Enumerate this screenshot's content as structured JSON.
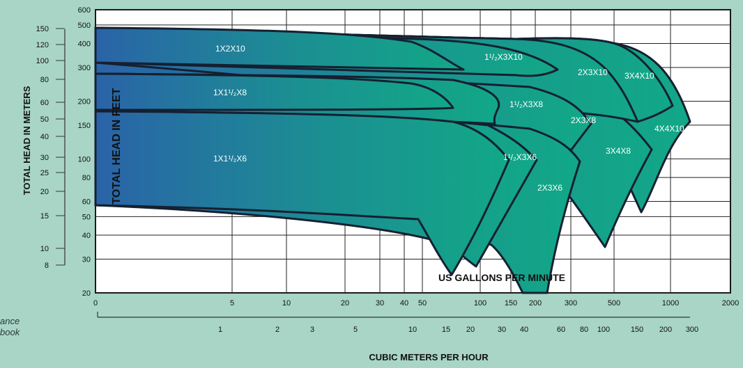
{
  "chart_data": {
    "type": "area",
    "axes": {
      "top_x": {
        "label": "US GALLONS PER MINUTE",
        "scale": "log",
        "ticks": [
          "0",
          "5",
          "10",
          "20",
          "30",
          "40",
          "50",
          "100",
          "150",
          "200",
          "300",
          "500",
          "1000",
          "2000"
        ]
      },
      "bottom_x": {
        "label": "CUBIC METERS PER HOUR",
        "scale": "log",
        "ticks": [
          "1",
          "2",
          "3",
          "5",
          "10",
          "15",
          "20",
          "30",
          "40",
          "60",
          "80",
          "100",
          "150",
          "200",
          "300"
        ]
      },
      "y_feet": {
        "label": "TOTAL HEAD IN FEET",
        "scale": "log",
        "range": [
          20,
          600
        ],
        "ticks": [
          "600",
          "500",
          "400",
          "300",
          "200",
          "150",
          "100",
          "80",
          "60",
          "50",
          "40",
          "30",
          "20"
        ]
      },
      "y_meters": {
        "label": "TOTAL HEAD IN METERS",
        "scale": "log",
        "ticks": [
          "150",
          "120",
          "100",
          "80",
          "60",
          "50",
          "40",
          "30",
          "25",
          "20",
          "15",
          "10",
          "8"
        ]
      }
    },
    "grid": true,
    "series": [
      {
        "name": "1X2X10"
      },
      {
        "name": "1¹/₂X3X10"
      },
      {
        "name": "2X3X10"
      },
      {
        "name": "3X4X10"
      },
      {
        "name": "4X4X10"
      },
      {
        "name": "1X1¹/₂X8"
      },
      {
        "name": "1¹/₂X3X8"
      },
      {
        "name": "2X3X8"
      },
      {
        "name": "3X4X8"
      },
      {
        "name": "1X1¹/₂X6"
      },
      {
        "name": "1¹/₂X3X6"
      },
      {
        "name": "2X3X6"
      }
    ],
    "colors": {
      "start": "#2a63a8",
      "mid": "#1b8f92",
      "end": "#12a887",
      "outline": "#152030",
      "background": "#a8d5c6",
      "plot": "#ffffff",
      "grid": "#222222"
    }
  },
  "left_fragment": [
    "ance",
    "book"
  ]
}
